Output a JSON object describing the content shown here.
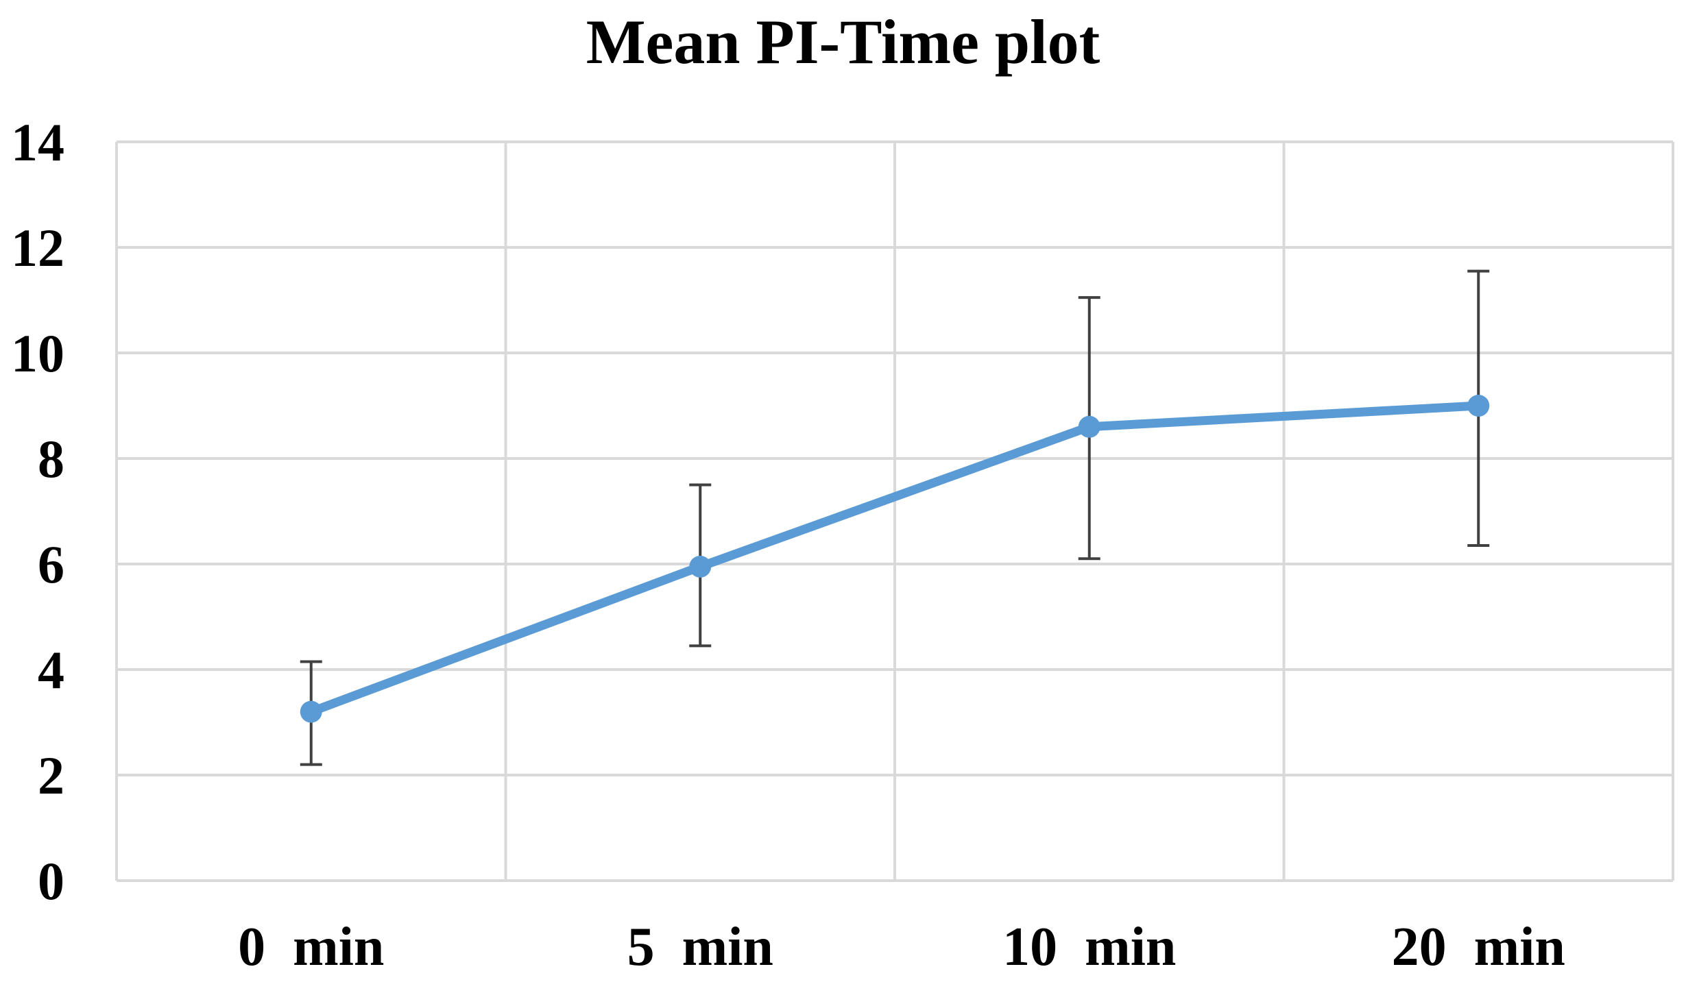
{
  "chart_data": {
    "type": "line",
    "title": "Mean PI-Time plot",
    "xlabel": "",
    "ylabel": "",
    "categories": [
      "0  min",
      "5  min",
      "10  min",
      "20  min"
    ],
    "series": [
      {
        "values": [
          3.2,
          5.95,
          8.6,
          9.0
        ],
        "error_upper": [
          4.15,
          7.5,
          11.05,
          11.55
        ],
        "error_lower": [
          2.2,
          4.45,
          6.1,
          6.35
        ]
      }
    ],
    "ylim": [
      0,
      14
    ],
    "yticks": [
      "0",
      "2",
      "4",
      "6",
      "8",
      "10",
      "12",
      "14"
    ],
    "grid": true,
    "legend": "none",
    "colors": {
      "line": "#5B9BD5",
      "error_bar": "#404040",
      "grid": "#D9D9D9"
    }
  }
}
